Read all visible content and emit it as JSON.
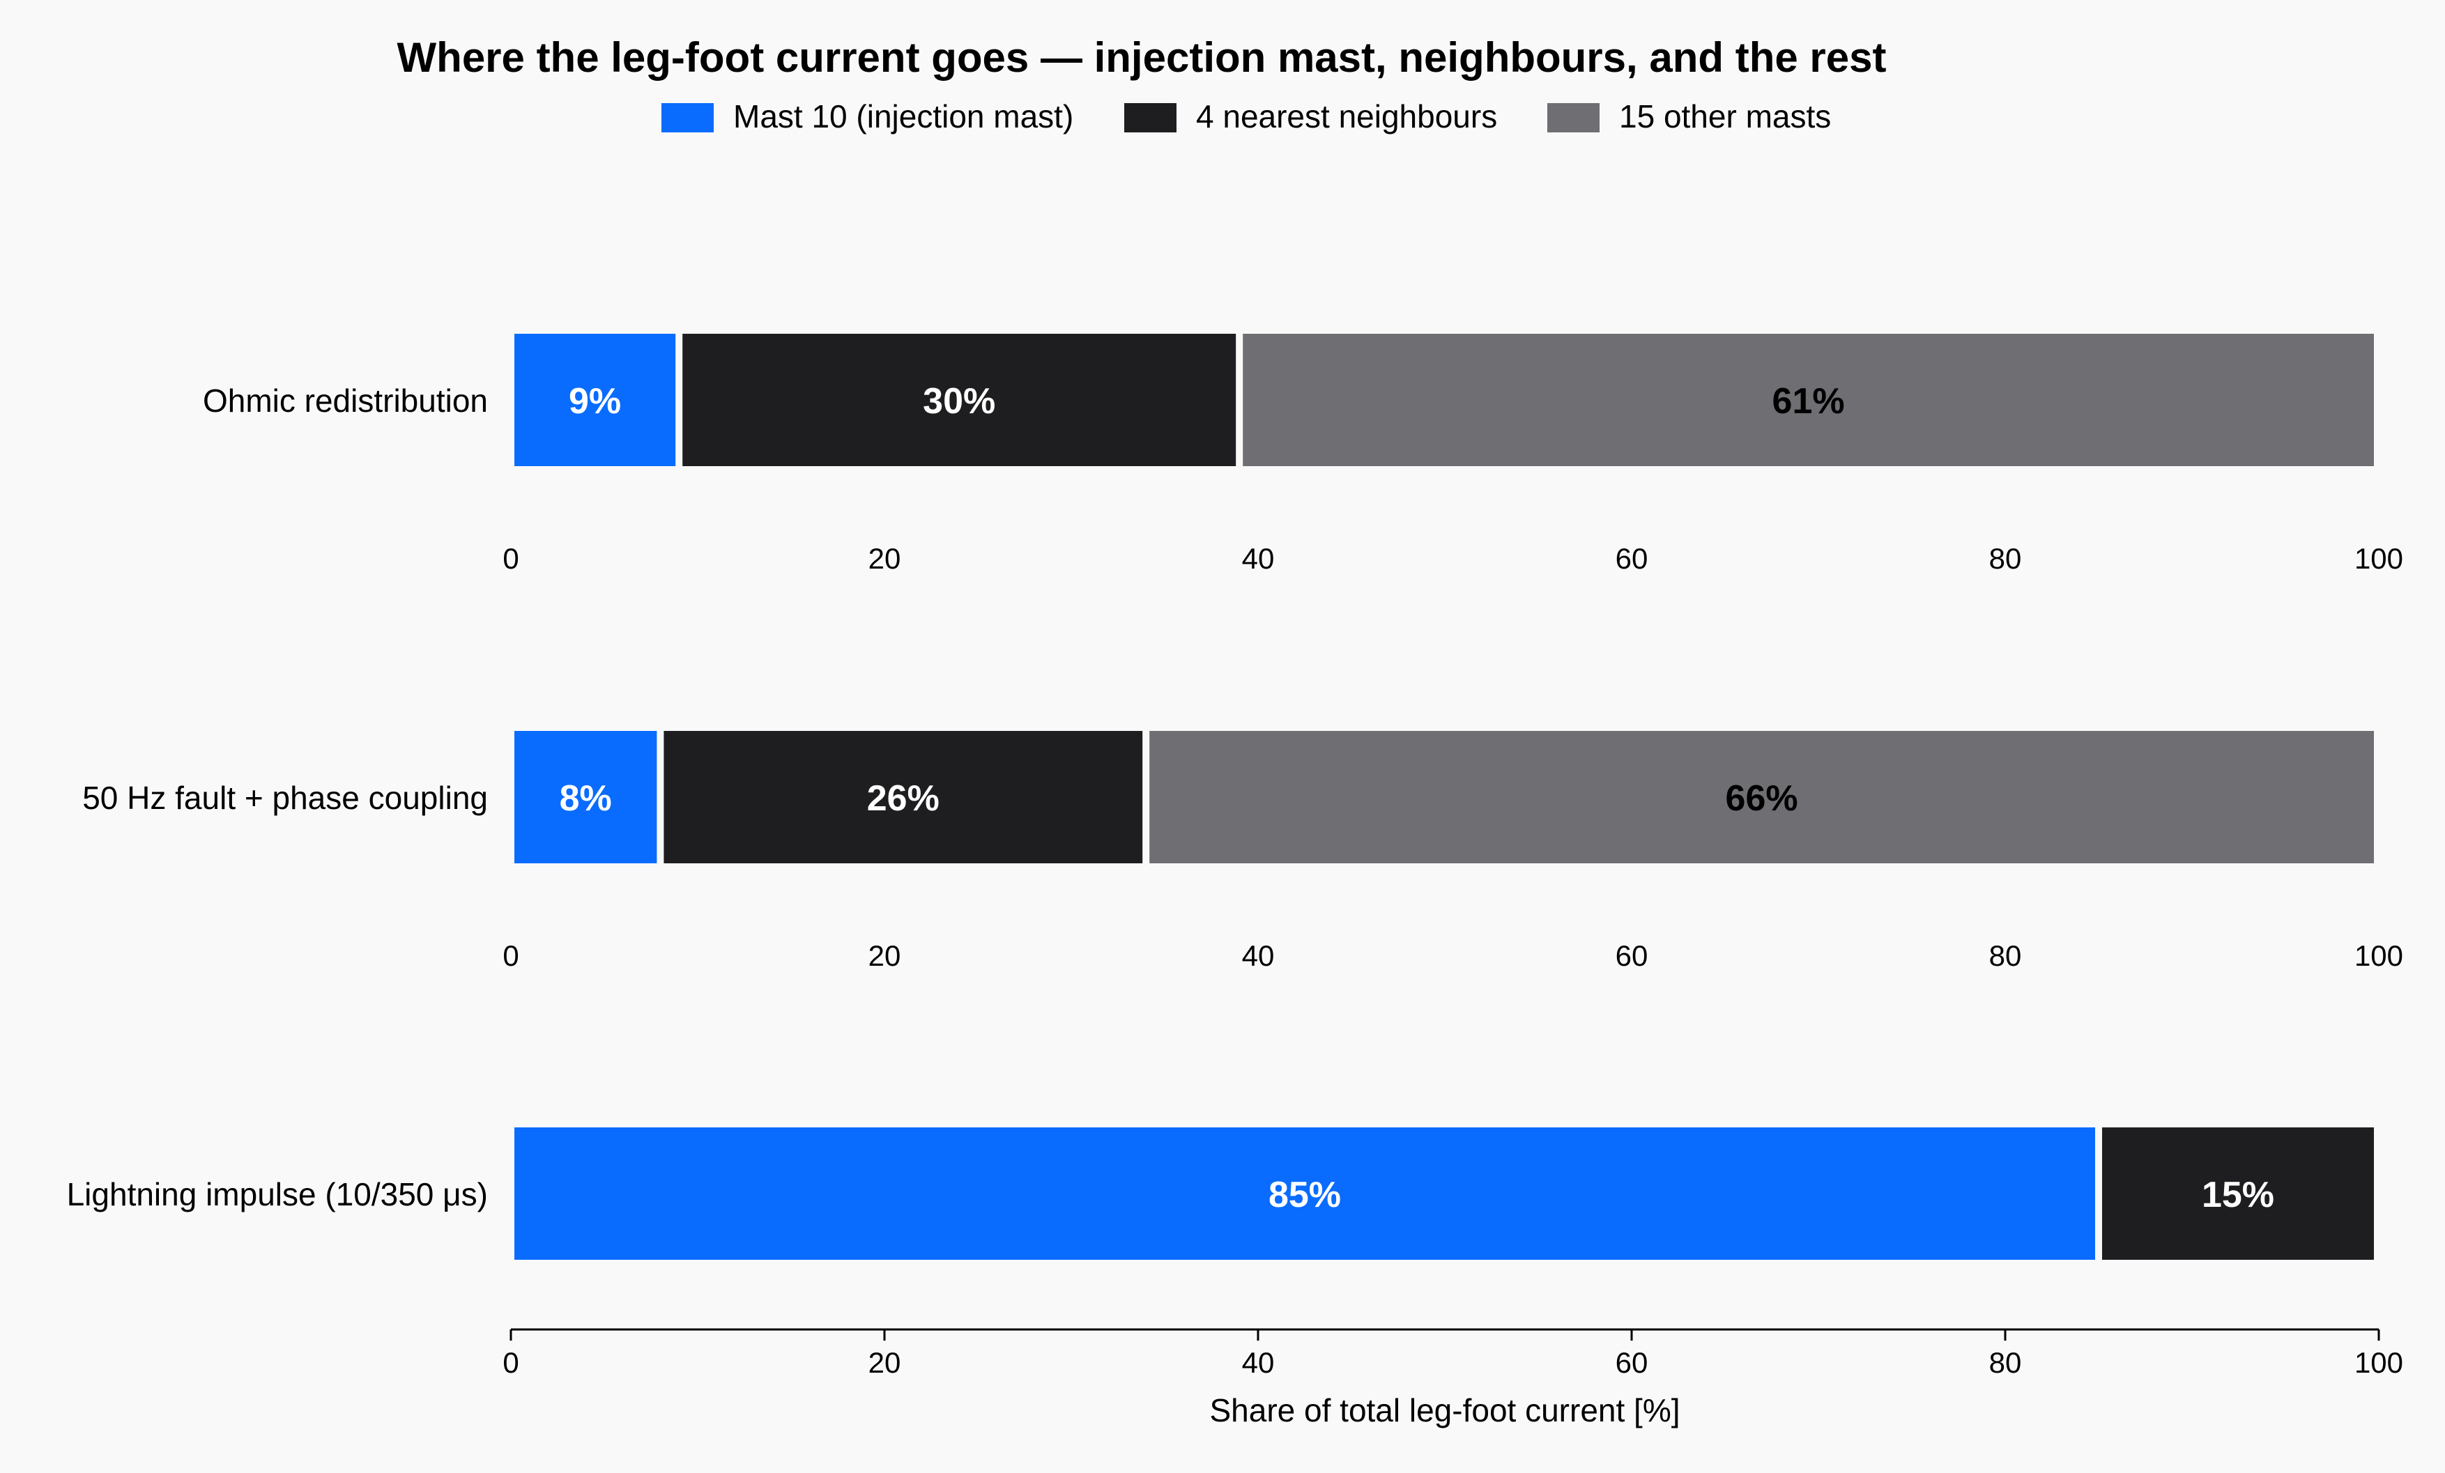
{
  "chart_data": {
    "type": "bar",
    "orientation": "horizontal",
    "stacked": true,
    "title": "Where the leg-foot current goes — injection mast, neighbours, and the rest",
    "xlabel": "Share of total leg-foot current [%]",
    "ylabel": "",
    "xlim": [
      0,
      100
    ],
    "xticks": [
      0,
      20,
      40,
      60,
      80,
      100
    ],
    "grid": false,
    "legend_position": "top-center",
    "categories": [
      "Ohmic redistribution",
      "50 Hz fault + phase coupling",
      "Lightning impulse (10/350 μs)"
    ],
    "series": [
      {
        "name": "Mast 10 (injection mast)",
        "color": "#0a6cff",
        "label_color": "#ffffff",
        "values": [
          9,
          8,
          85
        ],
        "labels": [
          "9%",
          "8%",
          "85%"
        ]
      },
      {
        "name": "4 nearest neighbours",
        "color": "#1e1e20",
        "label_color": "#ffffff",
        "values": [
          30,
          26,
          15
        ],
        "labels": [
          "30%",
          "26%",
          "15%"
        ]
      },
      {
        "name": "15 other masts",
        "color": "#6e6e73",
        "label_color": "#000000",
        "values": [
          61,
          66,
          0
        ],
        "labels": [
          "61%",
          "66%",
          ""
        ]
      }
    ]
  }
}
